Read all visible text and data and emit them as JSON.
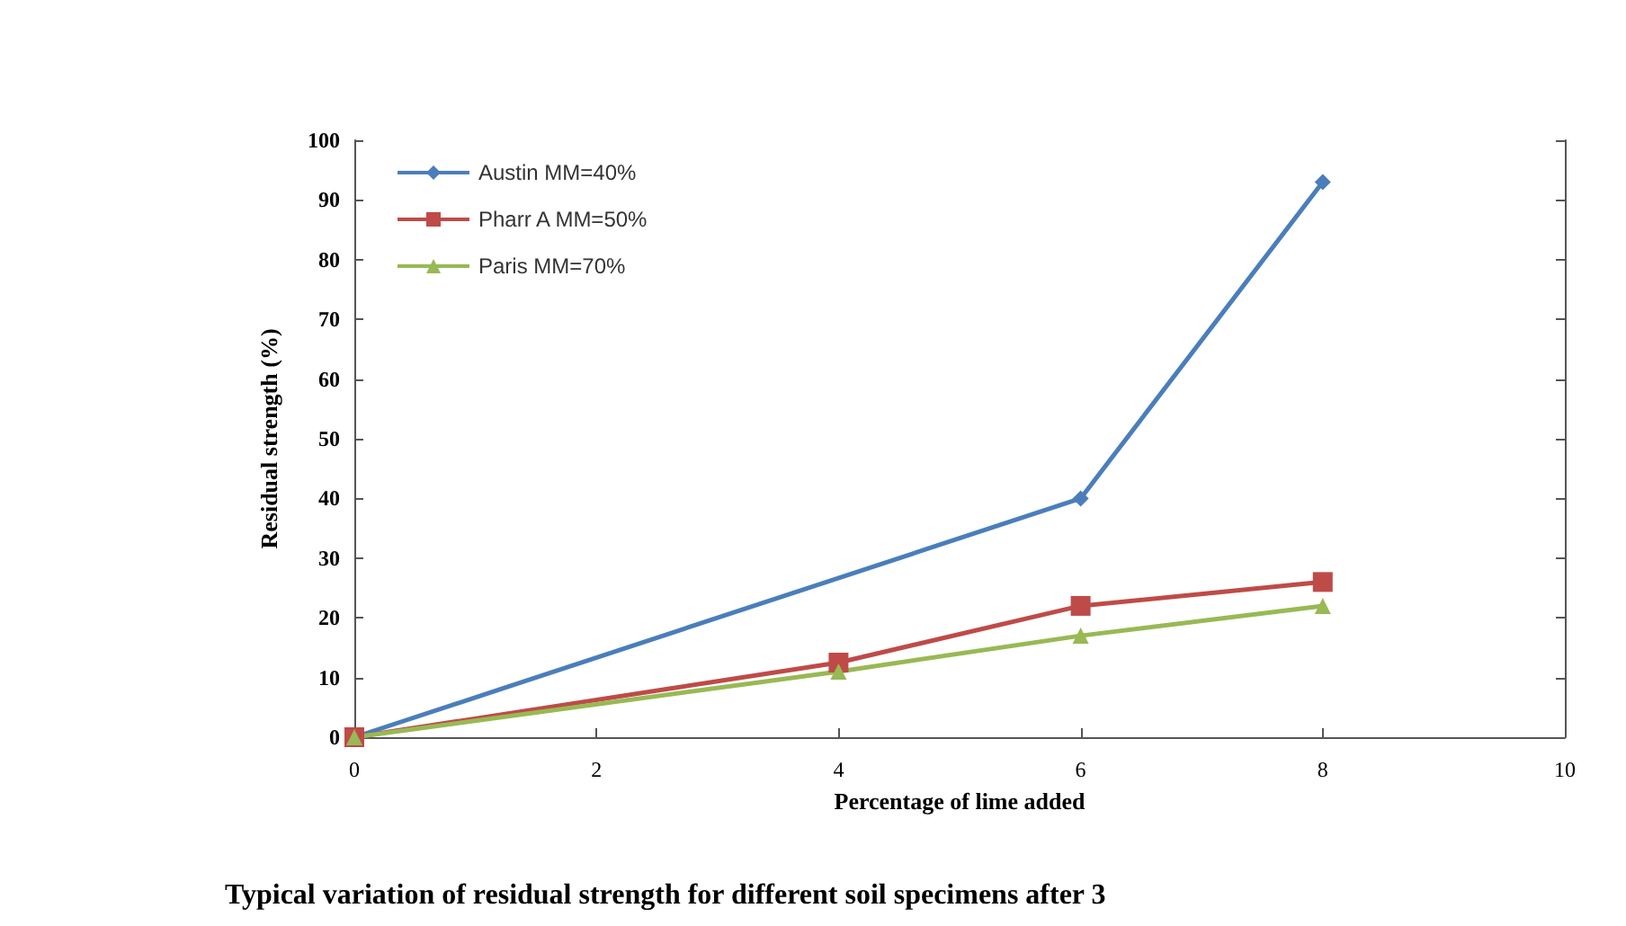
{
  "chart_data": {
    "type": "line",
    "title": "Typical variation of residual strength for different soil specimens after 3",
    "xlabel": "Percentage of lime added",
    "ylabel": "Residual strength (%)",
    "series": [
      {
        "name": "Austin MM=40%",
        "color": "#4a7ebb",
        "x": [
          0,
          6,
          8
        ],
        "values": [
          0,
          40,
          93
        ],
        "marker": "diamond"
      },
      {
        "name": "Pharr A MM=50%",
        "color": "#be4b48",
        "x": [
          0,
          4,
          6,
          8
        ],
        "values": [
          0,
          12.5,
          22,
          26
        ],
        "marker": "square"
      },
      {
        "name": "Paris MM=70%",
        "color": "#98b954",
        "x": [
          0,
          4,
          6,
          8
        ],
        "values": [
          0,
          11,
          17,
          22
        ],
        "marker": "triangle"
      }
    ],
    "xlim": [
      0,
      10
    ],
    "xticks": [
      0,
      2,
      4,
      6,
      8,
      10
    ],
    "ylim": [
      0,
      100
    ],
    "yticks": [
      0,
      10,
      20,
      30,
      40,
      50,
      60,
      70,
      80,
      90,
      100
    ],
    "grid": false,
    "legend": "top left"
  }
}
